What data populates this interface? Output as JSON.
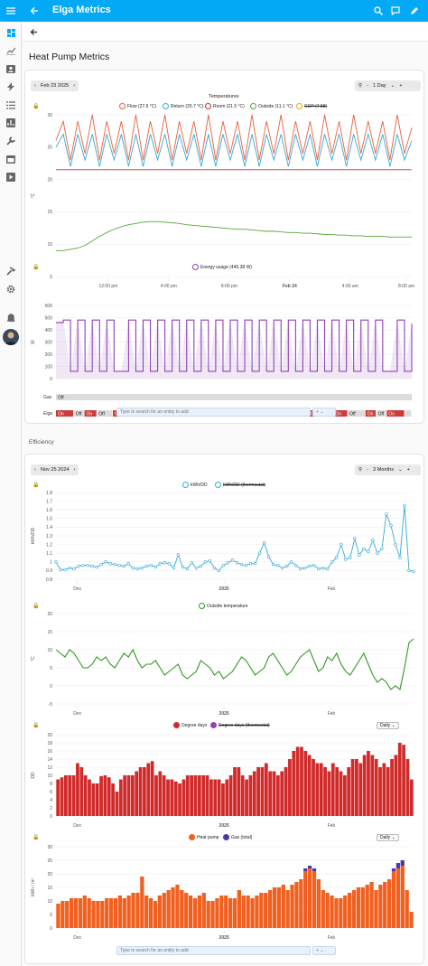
{
  "app": {
    "title": "Elga Metrics",
    "page_title": "Heat Pump Metrics",
    "section_efficiency": "Efficiency",
    "search_placeholder": "Type to search for an entity to add",
    "plus": "+"
  },
  "colors": {
    "accent": "#03a9f4",
    "flow": "#e8603c",
    "return": "#3aa9d4",
    "room": "#d02a2a",
    "outside": "#55a838",
    "cop": "#f0a800",
    "energy": "#8d43b5",
    "gas": "#cc3a3a",
    "heatpump": "#f06020",
    "gastotal": "#4a3aa8"
  },
  "heat": {
    "date": "Feb 23 2025",
    "zoom": "1 Day",
    "minus": "-",
    "plus": "+",
    "title": "Temperatures",
    "legend": [
      "Flow (27.9 °C)",
      "Return (25.7 °C)",
      "Room (21.5 °C)",
      "Outside (11.1 °C)",
      "COP (7.58)"
    ],
    "ylabel": "°C",
    "energy_legend": "Energy usage (445.38 W)",
    "energy_ylabel": "W",
    "time_ticks": [
      "12:00 pm",
      "4:00 pm",
      "8:00 pm",
      "Feb 24",
      "4:00 am",
      "8:00 am"
    ],
    "gas_label": "Gas",
    "gas_state": "Off",
    "elga_label": "Elga",
    "on": "On",
    "off": "Off"
  },
  "eff": {
    "date": "Nov 25 2024",
    "zoom": "3 Months",
    "minus": "-",
    "plus": "+",
    "kwh_legend": [
      "kWh/DD",
      "kWh/DD (thermostat)"
    ],
    "kwh_ylabel": "kWh/DD",
    "out_legend": "Outside temperature",
    "out_ylabel": "°C",
    "dd_legend": [
      "Degree days",
      "Degree days (thermostat)"
    ],
    "dd_ylabel": "DD",
    "period": "Daily",
    "energy_legend": [
      "Heat pump",
      "Gas (total)"
    ],
    "energy_ylabel": "kWh / m³",
    "date_ticks": [
      "Dec",
      "2025",
      "Feb"
    ]
  },
  "chart_data": [
    {
      "type": "line",
      "title": "Temperatures",
      "ylabel": "°C",
      "ylim": [
        5,
        30
      ],
      "series": [
        {
          "name": "Flow (27.9 °C)",
          "values": [
            26,
            29,
            23,
            29,
            24,
            30,
            23,
            29,
            24,
            29,
            23,
            30,
            23,
            29,
            24,
            30,
            23,
            29,
            24,
            29,
            23,
            30,
            23,
            29,
            24,
            29,
            23,
            30,
            23,
            29,
            24,
            30,
            23,
            29,
            24,
            29,
            23,
            30,
            24,
            29,
            23,
            30,
            24,
            29,
            24,
            29,
            23,
            30,
            24,
            28
          ]
        },
        {
          "name": "Return (25.7 °C)",
          "values": [
            25,
            27,
            22,
            27,
            23,
            27,
            22,
            27,
            23,
            27,
            22,
            27,
            22,
            27,
            23,
            27,
            22,
            27,
            23,
            27,
            22,
            27,
            22,
            27,
            23,
            27,
            22,
            27,
            22,
            27,
            23,
            27,
            22,
            27,
            23,
            27,
            22,
            27,
            23,
            27,
            22,
            27,
            23,
            27,
            23,
            27,
            22,
            27,
            23,
            26
          ]
        },
        {
          "name": "Room (21.5 °C)",
          "values": [
            21.5,
            21.5,
            21.5,
            21.5,
            21.5,
            21.5,
            21.5,
            21.5,
            21.5,
            21.5,
            21.5,
            21.5,
            21.5,
            21.5,
            21.5,
            21.5,
            21.5,
            21.5,
            21.5,
            21.5,
            21.5,
            21.5,
            21.5,
            21.5,
            21.5,
            21.5,
            21.5,
            21.5,
            21.5,
            21.5,
            21.5,
            21.5,
            21.5,
            21.5,
            21.5,
            21.5,
            21.5,
            21.5,
            21.5,
            21.5,
            21.5,
            21.5,
            21.5,
            21.5,
            21.5,
            21.5,
            21.5,
            21.5,
            21.5,
            21.5
          ]
        },
        {
          "name": "Outside (11.1 °C)",
          "values": [
            9,
            9,
            9.2,
            9.4,
            9.8,
            10.5,
            11.2,
            11.8,
            12.3,
            12.7,
            13,
            13.2,
            13.4,
            13.5,
            13.5,
            13.4,
            13.3,
            13.2,
            13,
            12.9,
            12.8,
            12.7,
            12.6,
            12.5,
            12.4,
            12.3,
            12.3,
            12.2,
            12.1,
            12,
            12,
            11.9,
            11.8,
            11.8,
            11.7,
            11.7,
            11.6,
            11.5,
            11.5,
            11.4,
            11.4,
            11.3,
            11.3,
            11.2,
            11.2,
            11.2,
            11.1,
            11.1,
            11.1,
            11.1
          ]
        }
      ]
    },
    {
      "type": "line",
      "title": "Energy usage",
      "ylabel": "W",
      "ylim": [
        0,
        600
      ],
      "series": [
        {
          "name": "Energy usage (445.38 W)",
          "values": [
            460,
            480,
            60,
            480,
            60,
            480,
            60,
            480,
            60,
            60,
            480,
            60,
            480,
            60,
            480,
            60,
            480,
            60,
            480,
            60,
            480,
            60,
            480,
            60,
            480,
            60,
            480,
            60,
            480,
            60,
            480,
            60,
            480,
            60,
            480,
            60,
            480,
            60,
            480,
            60,
            480,
            60,
            480,
            60,
            480,
            60,
            60,
            480,
            60,
            450
          ]
        }
      ]
    },
    {
      "type": "line",
      "ylabel": "kWh/DD",
      "ylim": [
        0.8,
        1.8
      ],
      "series": [
        {
          "name": "kWh/DD",
          "values": [
            1.0,
            0.91,
            0.91,
            0.93,
            0.92,
            0.95,
            0.96,
            0.96,
            0.95,
            0.94,
            0.97,
            1.0,
            0.98,
            0.97,
            0.96,
            0.95,
            0.98,
            0.93,
            0.92,
            0.93,
            0.95,
            0.96,
            0.94,
            0.98,
            0.99,
            0.98,
            0.93,
            1.08,
            0.94,
            0.92,
            0.99,
            0.93,
            0.95,
            1.0,
            1.01,
            0.93,
            0.9,
            0.96,
            0.99,
            1.02,
            0.99,
            0.97,
            0.96,
            0.98,
            0.98,
            1.1,
            1.22,
            1.06,
            0.97,
            0.96,
            0.93,
            0.95,
            1.0,
            0.96,
            0.92,
            0.93,
            0.95,
            0.96,
            0.92,
            0.93,
            0.92,
            1.0,
            1.05,
            1.2,
            1.03,
            1.05,
            1.27,
            1.08,
            1.15,
            1.12,
            1.25,
            1.1,
            1.15,
            1.55,
            1.42,
            1.2,
            1.05,
            1.65,
            0.9,
            0.89
          ]
        }
      ]
    },
    {
      "type": "line",
      "ylabel": "°C",
      "ylim": [
        -5,
        20
      ],
      "series": [
        {
          "name": "Outside temperature",
          "values": [
            10,
            9,
            8,
            10,
            9,
            7,
            5,
            5,
            6,
            8,
            7,
            8,
            6,
            5,
            7,
            9,
            8,
            10,
            7,
            5,
            6,
            6,
            7,
            5,
            3,
            4,
            5,
            6,
            3,
            2,
            3,
            4,
            7,
            6,
            5,
            3,
            4,
            2,
            3,
            4,
            6,
            8,
            7,
            5,
            3,
            4,
            5,
            8,
            9,
            7,
            5,
            3,
            4,
            6,
            8,
            9,
            10,
            7,
            4,
            5,
            8,
            7,
            9,
            6,
            4,
            3,
            5,
            7,
            9,
            6,
            3,
            1,
            2,
            1,
            -1,
            0,
            -1,
            5,
            12,
            13
          ]
        }
      ]
    },
    {
      "type": "bar",
      "ylabel": "DD",
      "ylim": [
        0,
        20
      ],
      "series": [
        {
          "name": "Degree days",
          "values": [
            9,
            9.5,
            10,
            10,
            10,
            13,
            12,
            10,
            9,
            8,
            8,
            9.8,
            10,
            9.5,
            8,
            6,
            9,
            10,
            10,
            10,
            11,
            12,
            12,
            13,
            13.5,
            10,
            11,
            10,
            9,
            9,
            8.5,
            8,
            9,
            10,
            10,
            10,
            10,
            10,
            10,
            9,
            9,
            9,
            8,
            9,
            10,
            12,
            12,
            10,
            9,
            10,
            11,
            12,
            12,
            13,
            11,
            11,
            10,
            11,
            12,
            14,
            16,
            17,
            17,
            16,
            15,
            14,
            13,
            13,
            12,
            11,
            13,
            12,
            11,
            10,
            12,
            14,
            14,
            13,
            15,
            16,
            15,
            14,
            12,
            13,
            12,
            14,
            15,
            18,
            17.5,
            14,
            9
          ]
        }
      ]
    },
    {
      "type": "bar",
      "ylabel": "kWh / m³",
      "ylim": [
        0,
        30
      ],
      "series": [
        {
          "name": "Heat pump",
          "values": [
            9,
            10,
            10,
            11,
            11,
            11,
            12,
            11,
            10,
            10,
            10,
            11,
            11,
            11,
            12,
            11,
            12,
            13,
            13,
            19,
            12,
            11,
            10,
            12,
            13,
            14,
            15,
            16,
            14,
            13,
            12,
            11,
            12,
            13,
            10,
            10,
            11,
            12,
            12,
            11,
            11,
            14,
            12,
            12,
            11,
            12,
            13,
            13,
            14,
            15,
            15,
            16,
            14,
            16,
            17,
            18,
            21,
            22,
            21,
            18,
            14,
            13,
            12,
            11,
            11,
            12,
            13,
            14,
            15,
            15,
            16,
            17,
            14,
            16,
            17,
            18,
            21,
            22,
            23,
            14,
            6
          ]
        },
        {
          "name": "Gas (total)",
          "values": [
            0,
            0,
            0,
            0,
            0,
            0,
            0,
            0,
            0,
            0,
            0,
            0,
            0,
            0,
            0,
            0,
            0,
            0,
            0,
            0,
            0,
            0,
            0,
            0,
            0,
            0,
            0,
            0,
            0,
            0,
            0,
            0,
            0,
            0,
            0,
            0,
            0,
            0,
            0,
            0,
            0,
            0,
            0,
            0,
            0,
            0,
            0,
            0,
            0,
            0,
            0,
            0,
            0,
            0,
            0,
            0,
            1,
            1,
            1,
            0,
            0,
            0,
            0,
            0,
            0,
            0,
            0,
            0,
            0,
            0,
            0,
            0,
            0,
            0,
            0,
            0,
            1,
            2,
            2,
            0,
            0
          ]
        }
      ]
    }
  ]
}
